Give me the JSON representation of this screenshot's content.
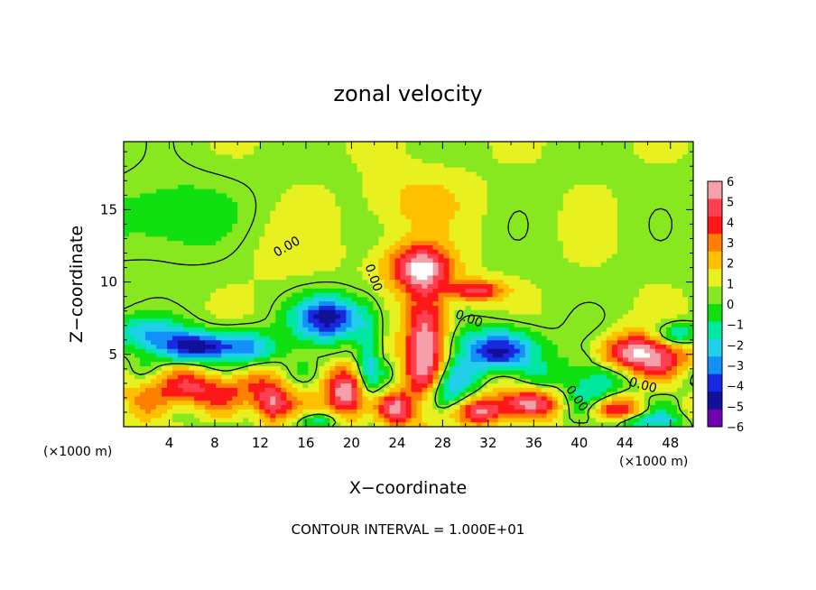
{
  "chart_data": {
    "type": "heatmap",
    "title": "zonal velocity",
    "xlabel": "X−coordinate",
    "ylabel": "Z−coordinate",
    "x_unit_label": "(×1000 m)",
    "y_unit_label": "(×1000 m)",
    "x_ticks": [
      "4",
      "8",
      "12",
      "16",
      "20",
      "24",
      "28",
      "32",
      "36",
      "40",
      "44",
      "48"
    ],
    "y_ticks": [
      "5",
      "10",
      "15"
    ],
    "xlim": [
      0,
      50
    ],
    "ylim": [
      0,
      19.7
    ],
    "colorbar": {
      "labels": [
        "6",
        "5",
        "4",
        "3",
        "2",
        "1",
        "0",
        "−1",
        "−2",
        "−3",
        "−4",
        "−5",
        "−6"
      ],
      "range": [
        -6,
        6
      ],
      "colors": [
        "#f5a0a8",
        "#ff4050",
        "#ff1818",
        "#ff8000",
        "#ffc000",
        "#e8f020",
        "#88e820",
        "#10e010",
        "#00e8a0",
        "#20d0e8",
        "#1090f8",
        "#1828e0",
        "#101098",
        "#7000b0"
      ]
    },
    "contour_labels": [
      "0.00",
      "0.00",
      "0.00",
      "0.00",
      "0.00"
    ],
    "footer": "CONTOUR INTERVAL =  1.000E+01",
    "features": [
      {
        "kind": "positive",
        "x": 26,
        "z": 11.0,
        "rx": 2.8,
        "rz": 1.6,
        "amp": 5.5
      },
      {
        "kind": "positive",
        "x": 31,
        "z": 9.4,
        "rx": 2.4,
        "rz": 0.7,
        "amp": 4.5
      },
      {
        "kind": "positive",
        "x": 26.5,
        "z": 5.5,
        "rx": 1.8,
        "rz": 4.0,
        "amp": 6.0
      },
      {
        "kind": "positive",
        "x": 45,
        "z": 5.0,
        "rx": 4.5,
        "rz": 1.4,
        "amp": 6.0
      },
      {
        "kind": "positive",
        "x": 7,
        "z": 2.5,
        "rx": 6.0,
        "rz": 1.3,
        "amp": 4.0
      },
      {
        "kind": "positive",
        "x": 19.5,
        "z": 2.0,
        "rx": 1.8,
        "rz": 1.6,
        "amp": 6.0
      },
      {
        "kind": "positive",
        "x": 13,
        "z": 1.5,
        "rx": 1.5,
        "rz": 1.2,
        "amp": 5.0
      },
      {
        "kind": "positive",
        "x": 35,
        "z": 1.6,
        "rx": 3.0,
        "rz": 1.0,
        "amp": 5.0
      },
      {
        "kind": "positive",
        "x": 31.5,
        "z": 1.0,
        "rx": 2.0,
        "rz": 0.9,
        "amp": 4.5
      },
      {
        "kind": "positive",
        "x": 24,
        "z": 1.2,
        "rx": 1.6,
        "rz": 1.2,
        "amp": 5.0
      },
      {
        "kind": "positive",
        "x": 43,
        "z": 1.2,
        "rx": 2.5,
        "rz": 0.8,
        "amp": 3.5
      },
      {
        "kind": "positive",
        "x": 14,
        "z": 12.5,
        "rx": 5.0,
        "rz": 2.2,
        "amp": 0.5
      },
      {
        "kind": "positive",
        "x": 26,
        "z": 15.5,
        "rx": 4.0,
        "rz": 2.0,
        "amp": 1.5
      },
      {
        "kind": "negative",
        "x": 6.5,
        "z": 5.5,
        "rx": 3.2,
        "rz": 1.0,
        "amp": -6.0
      },
      {
        "kind": "negative",
        "x": 18.0,
        "z": 7.5,
        "rx": 3.0,
        "rz": 1.5,
        "amp": -6.0
      },
      {
        "kind": "negative",
        "x": 33.0,
        "z": 5.2,
        "rx": 3.5,
        "rz": 1.5,
        "amp": -6.0
      },
      {
        "kind": "negative",
        "x": 2.0,
        "z": 6.5,
        "rx": 3.5,
        "rz": 1.2,
        "amp": -3.0
      },
      {
        "kind": "negative",
        "x": 11.0,
        "z": 5.5,
        "rx": 2.5,
        "rz": 1.2,
        "amp": -3.5
      },
      {
        "kind": "negative",
        "x": 41.0,
        "z": 3.5,
        "rx": 2.5,
        "rz": 2.5,
        "amp": -3.5
      },
      {
        "kind": "negative",
        "x": 21.5,
        "z": 4.5,
        "rx": 1.0,
        "rz": 3.0,
        "amp": -3.0
      },
      {
        "kind": "negative",
        "x": 28.5,
        "z": 2.5,
        "rx": 2.0,
        "rz": 1.5,
        "amp": -4.0
      },
      {
        "kind": "negative",
        "x": 48.5,
        "z": 6.3,
        "rx": 2.0,
        "rz": 0.8,
        "amp": -4.0
      },
      {
        "kind": "negative",
        "x": 4.0,
        "z": 14.5,
        "rx": 6.0,
        "rz": 3.0,
        "amp": -1.5
      },
      {
        "kind": "negative",
        "x": 17.0,
        "z": 0.4,
        "rx": 2.0,
        "rz": 0.6,
        "amp": -3.0
      },
      {
        "kind": "negative",
        "x": 46.0,
        "z": 0.4,
        "rx": 3.0,
        "rz": 0.5,
        "amp": -3.0
      }
    ]
  }
}
